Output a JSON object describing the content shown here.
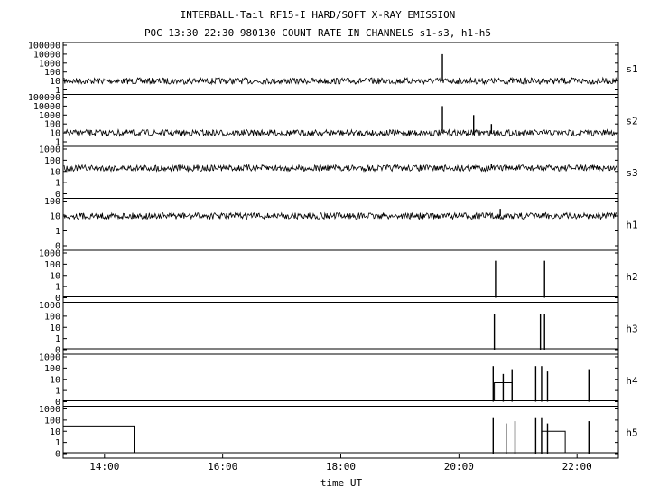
{
  "chart_data": {
    "type": "line",
    "title": "INTERBALL-Tail RF15-I HARD/SOFT X-RAY EMISSION",
    "subtitle": "POC 13:30 22:30 980130  COUNT RATE IN CHANNELS s1-s3, h1-h5",
    "xlabel": "time UT",
    "x_range_hours": [
      13.3,
      22.7
    ],
    "x_ticks": [
      {
        "label": "14:00",
        "hour": 14
      },
      {
        "label": "16:00",
        "hour": 16
      },
      {
        "label": "18:00",
        "hour": 18
      },
      {
        "label": "20:00",
        "hour": 20
      },
      {
        "label": "22:00",
        "hour": 22
      }
    ],
    "y_scale": "log",
    "panels": [
      {
        "name": "s1",
        "ticks": [
          "100000",
          "10000",
          "1000",
          "100",
          "10",
          "1"
        ],
        "noise_level": 10,
        "spikes": [
          {
            "x": 19.72,
            "y": 10000
          }
        ]
      },
      {
        "name": "s2",
        "ticks": [
          "100000",
          "10000",
          "1000",
          "100",
          "10",
          "1"
        ],
        "noise_level": 10,
        "spikes": [
          {
            "x": 19.72,
            "y": 10000
          },
          {
            "x": 20.25,
            "y": 1000
          },
          {
            "x": 20.55,
            "y": 100
          }
        ]
      },
      {
        "name": "s3",
        "ticks": [
          "1000",
          "100",
          "10",
          "1",
          "0"
        ],
        "noise_level": 20,
        "spikes": [
          {
            "x": 19.72,
            "y": 30
          },
          {
            "x": 20.25,
            "y": 30
          },
          {
            "x": 20.55,
            "y": 50
          }
        ]
      },
      {
        "name": "h1",
        "ticks": [
          "100",
          "10",
          "1",
          "0"
        ],
        "noise_level": 10,
        "spikes": [
          {
            "x": 20.7,
            "y": 30
          }
        ]
      },
      {
        "name": "h2",
        "ticks": [
          "1000",
          "100",
          "10",
          "1",
          "0"
        ],
        "noise_level": 0,
        "spikes": [
          {
            "x": 20.62,
            "y": 200
          },
          {
            "x": 21.45,
            "y": 200
          }
        ]
      },
      {
        "name": "h3",
        "ticks": [
          "1000",
          "100",
          "10",
          "1",
          "0"
        ],
        "noise_level": 0,
        "spikes": [
          {
            "x": 20.6,
            "y": 150
          },
          {
            "x": 21.38,
            "y": 150
          },
          {
            "x": 21.45,
            "y": 150
          }
        ]
      },
      {
        "name": "h4",
        "ticks": [
          "1000",
          "100",
          "10",
          "1",
          "0"
        ],
        "noise_level": 0,
        "spikes": [
          {
            "x": 20.58,
            "y": 150
          },
          {
            "x": 20.75,
            "y": 30
          },
          {
            "x": 20.9,
            "y": 80
          },
          {
            "x": 21.3,
            "y": 150
          },
          {
            "x": 21.4,
            "y": 150
          },
          {
            "x": 21.5,
            "y": 50
          },
          {
            "x": 22.2,
            "y": 80
          }
        ],
        "steps": [
          {
            "x0": 20.6,
            "x1": 20.9,
            "y": 5
          }
        ]
      },
      {
        "name": "h5",
        "ticks": [
          "1000",
          "100",
          "10",
          "1",
          "0"
        ],
        "noise_level": 0,
        "spikes": [
          {
            "x": 20.58,
            "y": 150
          },
          {
            "x": 20.8,
            "y": 50
          },
          {
            "x": 20.95,
            "y": 80
          },
          {
            "x": 21.3,
            "y": 150
          },
          {
            "x": 21.4,
            "y": 150
          },
          {
            "x": 21.5,
            "y": 50
          },
          {
            "x": 22.2,
            "y": 80
          }
        ],
        "steps": [
          {
            "x0": 13.3,
            "x1": 14.5,
            "y": 30
          },
          {
            "x0": 21.4,
            "x1": 21.8,
            "y": 10
          }
        ]
      }
    ]
  }
}
